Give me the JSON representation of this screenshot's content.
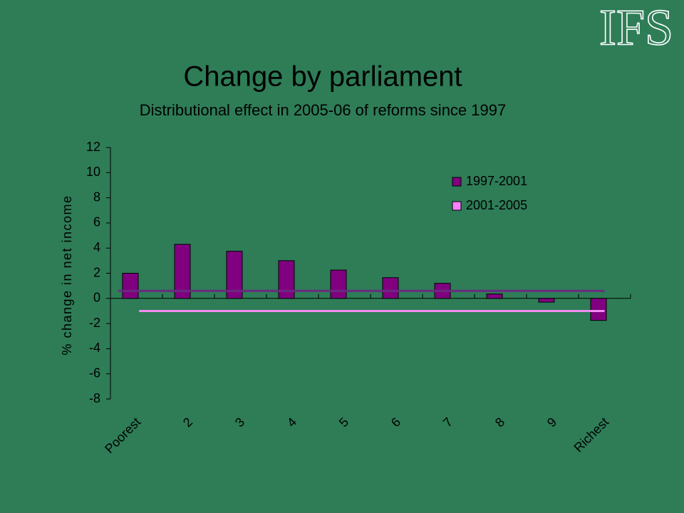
{
  "logo": "IFS",
  "chart_data": {
    "type": "bar",
    "title": "Change by parliament",
    "subtitle": "Distributional effect in 2005-06 of reforms since 1997",
    "y_label": "% change in net income",
    "categories": [
      "Poorest",
      "2",
      "3",
      "4",
      "5",
      "6",
      "7",
      "8",
      "9",
      "Richest"
    ],
    "series": [
      {
        "name": "1997-2001",
        "color": "#800080",
        "values": [
          2.0,
          4.3,
          3.75,
          3.0,
          2.25,
          1.65,
          1.2,
          0.35,
          -0.3,
          -1.75
        ],
        "line": 0.6,
        "line_color": "#6b2a80"
      },
      {
        "name": "2001-2005",
        "color": "#ff80ff",
        "values": [
          null,
          null,
          null,
          null,
          null,
          null,
          null,
          null,
          null,
          null
        ],
        "line": -1.0,
        "line_color": "#f08cf0"
      }
    ],
    "ylim": [
      -8,
      12
    ],
    "yticks": [
      -8,
      -6,
      -4,
      -2,
      0,
      2,
      4,
      6,
      8,
      10,
      12
    ]
  }
}
